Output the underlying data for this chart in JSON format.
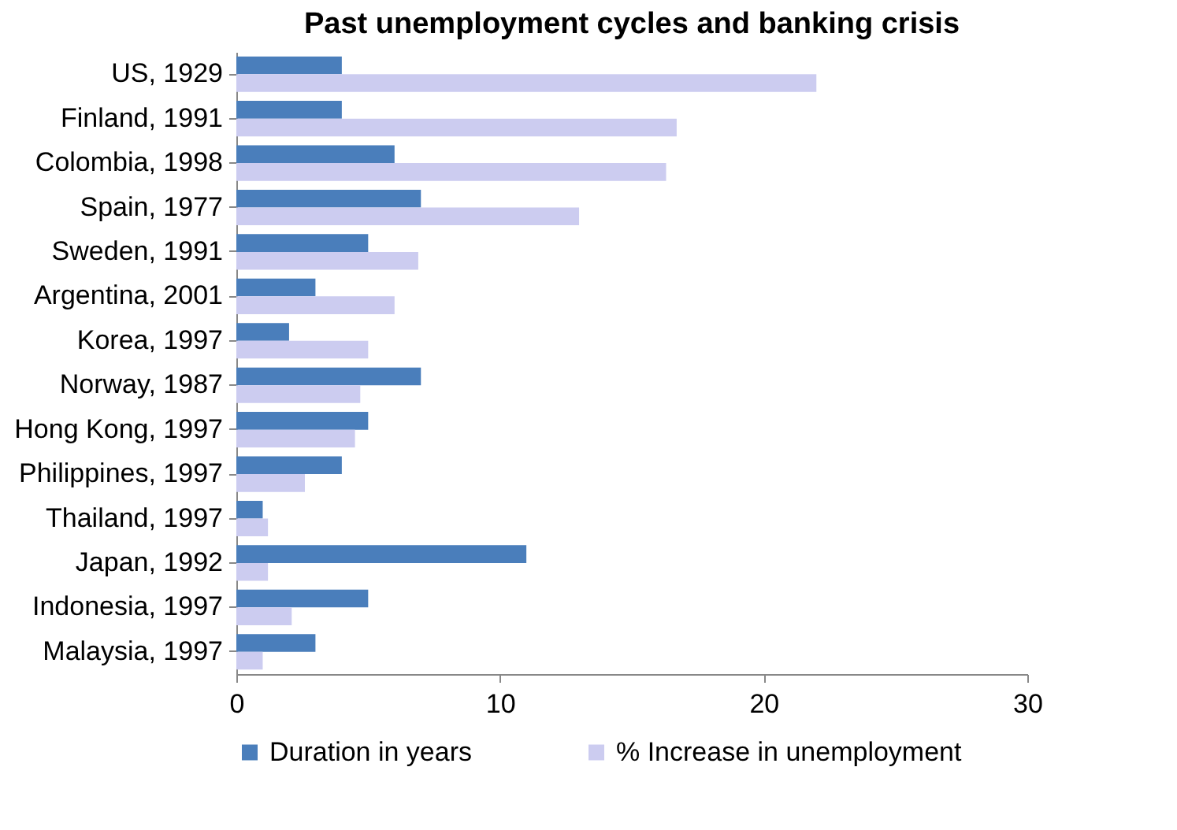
{
  "chart_data": {
    "type": "bar",
    "orientation": "horizontal",
    "title": "Past unemployment cycles and banking crisis",
    "categories": [
      "US, 1929",
      "Finland, 1991",
      "Colombia, 1998",
      "Spain, 1977",
      "Sweden, 1991",
      "Argentina, 2001",
      "Korea, 1997",
      "Norway, 1987",
      "Hong Kong, 1997",
      "Philippines, 1997",
      "Thailand, 1997",
      "Japan, 1992",
      "Indonesia, 1997",
      "Malaysia, 1997"
    ],
    "series": [
      {
        "name": "Duration in years",
        "color": "#4a7ebb",
        "values": [
          4,
          4,
          6,
          7,
          5,
          3,
          2,
          7,
          5,
          4,
          1,
          11,
          5,
          3
        ]
      },
      {
        "name": "% Increase in unemployment",
        "color": "#ccccf0",
        "values": [
          22,
          16.7,
          16.3,
          13,
          6.9,
          6,
          5,
          4.7,
          4.5,
          2.6,
          1.2,
          1.2,
          2.1,
          1
        ]
      }
    ],
    "xlim": [
      0,
      30
    ],
    "xticks": [
      0,
      10,
      20,
      30
    ],
    "grid": false,
    "legend": "bottom"
  }
}
